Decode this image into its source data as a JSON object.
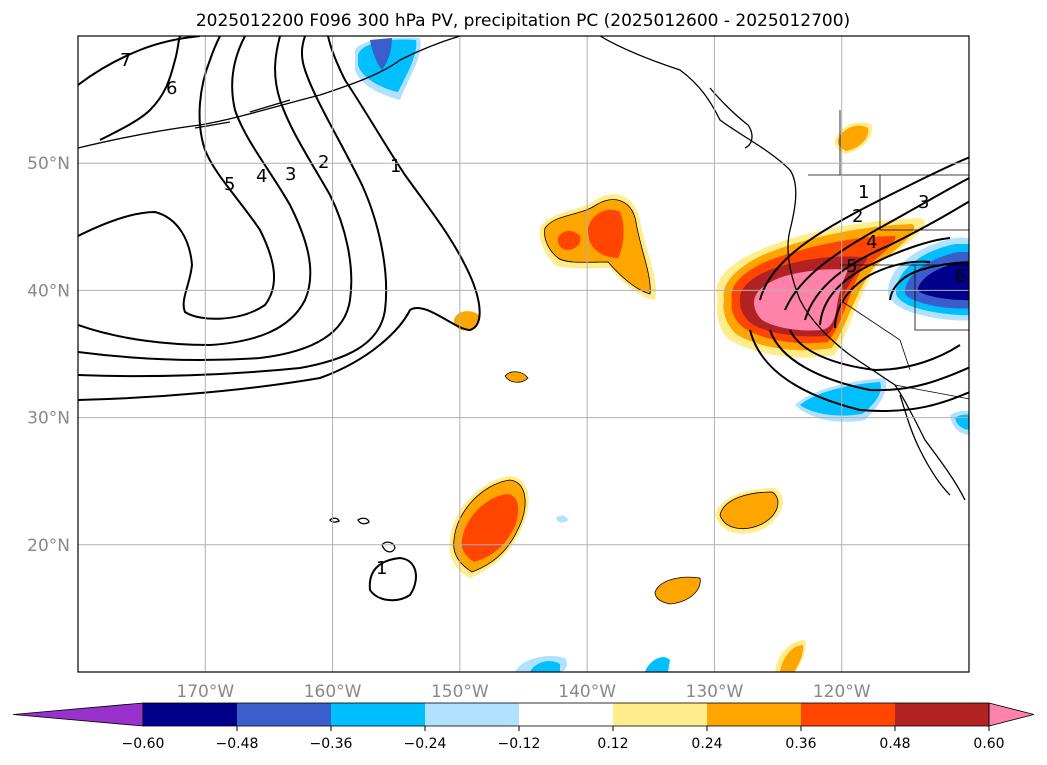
{
  "title": "2025012200 F096 300 hPa PV, precipitation PC (2025012600 - 2025012700)",
  "lat_labels": [
    "50°N",
    "40°N",
    "30°N",
    "20°N"
  ],
  "lon_labels": [
    "170°W",
    "160°W",
    "150°W",
    "140°W",
    "130°W",
    "120°W"
  ],
  "extent": {
    "lon": [
      -180,
      -110
    ],
    "lat": [
      10,
      60
    ]
  },
  "pv_contour_levels": [
    1,
    2,
    3,
    4,
    5,
    6,
    7
  ],
  "colorbar": {
    "ticks": [
      "−0.60",
      "−0.48",
      "−0.36",
      "−0.24",
      "−0.12",
      "0.12",
      "0.24",
      "0.36",
      "0.48",
      "0.60"
    ],
    "extend": "both",
    "colors": [
      "#9932cc",
      "#00008b",
      "#3a5fcd",
      "#00bfff",
      "#b0e2ff",
      "#ffffff",
      "#ffec8b",
      "#ffa500",
      "#ff4500",
      "#b22222",
      "#ff82ab"
    ]
  },
  "colors": {
    "gridline": "#b0b0b0",
    "contour": "#000000",
    "coastline": "#000000"
  }
}
